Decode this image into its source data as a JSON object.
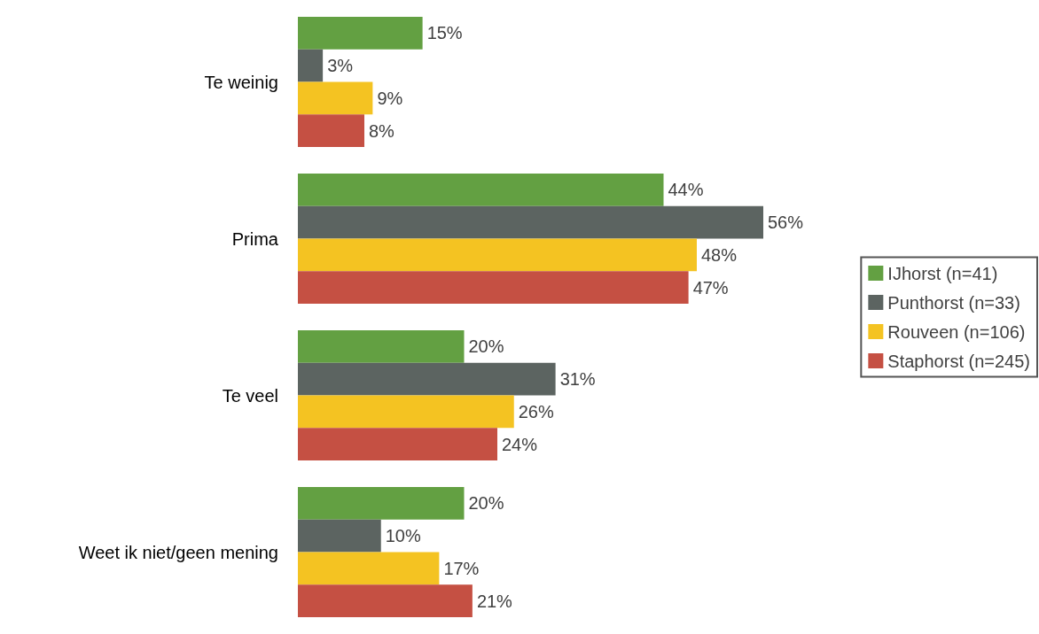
{
  "chart_data": {
    "type": "bar",
    "orientation": "horizontal",
    "categories": [
      "Te weinig",
      "Prima",
      "Te veel",
      "Weet ik niet/geen mening"
    ],
    "series": [
      {
        "name": "IJhorst (n=41)",
        "color": "#63a042",
        "values": [
          15,
          44,
          20,
          20
        ],
        "value_labels": [
          "15%",
          "44%",
          "20%",
          "20%"
        ]
      },
      {
        "name": "Punthorst (n=33)",
        "color": "#5c6461",
        "values": [
          3,
          56,
          31,
          10
        ],
        "value_labels": [
          "3%",
          "56%",
          "31%",
          "10%"
        ]
      },
      {
        "name": "Rouveen (n=106)",
        "color": "#f4c322",
        "values": [
          9,
          48,
          26,
          17
        ],
        "value_labels": [
          "9%",
          "48%",
          "26%",
          "17%"
        ]
      },
      {
        "name": "Staphorst (n=245)",
        "color": "#c55043",
        "values": [
          8,
          47,
          24,
          21
        ],
        "value_labels": [
          "8%",
          "47%",
          "24%",
          "21%"
        ]
      }
    ],
    "legend": "right",
    "grid": false,
    "tick_labels": "y"
  }
}
